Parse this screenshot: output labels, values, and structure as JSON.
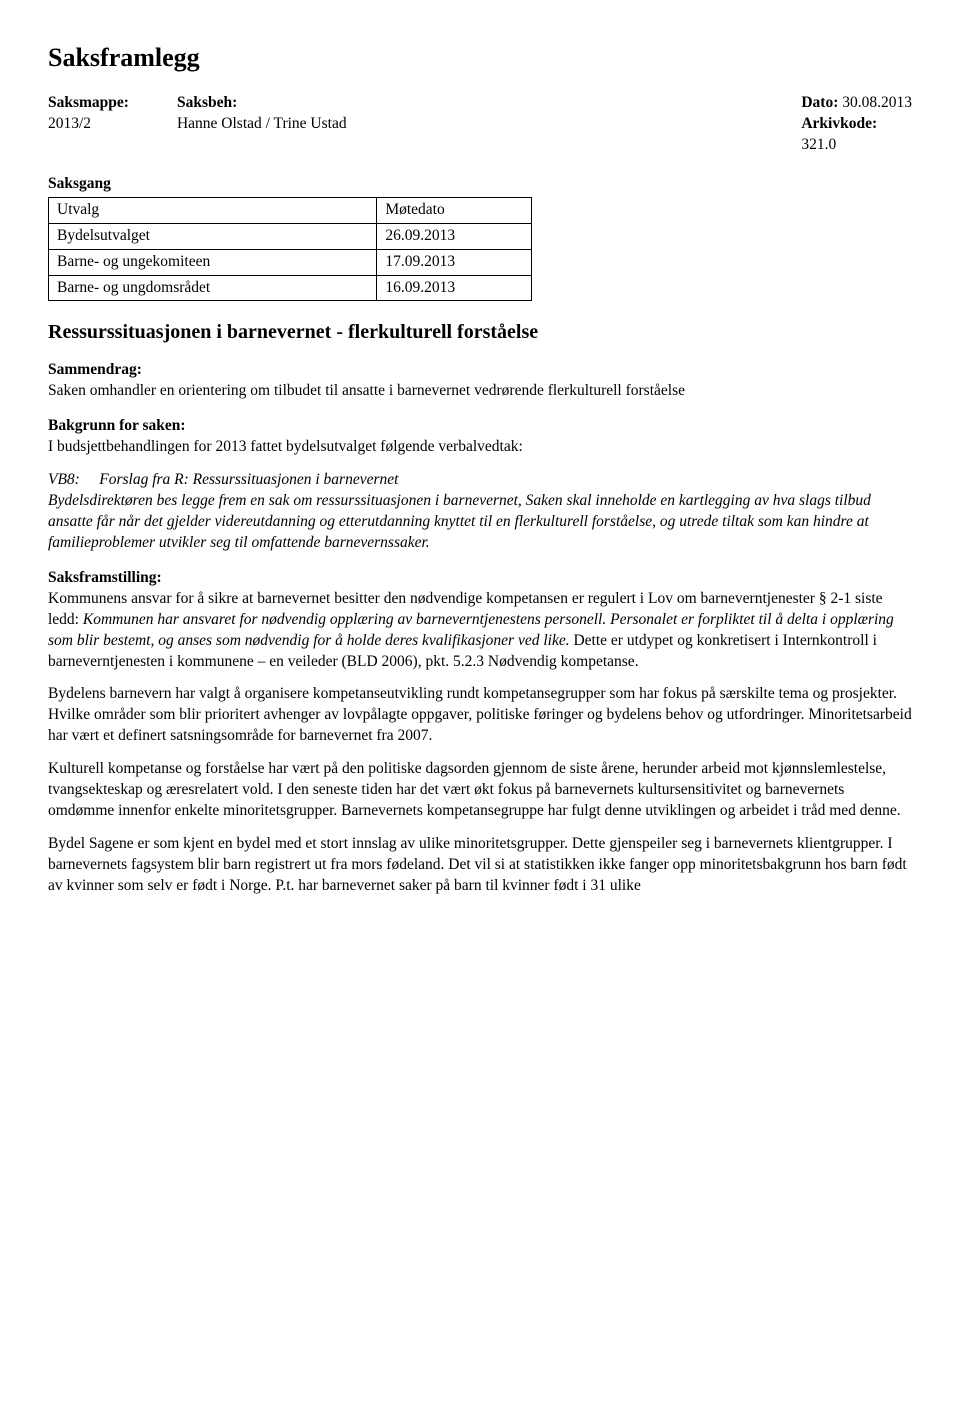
{
  "title": "Saksframlegg",
  "meta": {
    "saksmappe_label": "Saksmappe:",
    "saksmappe_value": "2013/2",
    "saksbeh_label": "Saksbeh:",
    "saksbeh_value": "Hanne Olstad / Trine Ustad",
    "dato_label": "Dato:",
    "dato_value": "30.08.2013",
    "arkiv_label": "Arkivkode:",
    "arkiv_value": "321.0"
  },
  "saksgang": {
    "label": "Saksgang",
    "columns": [
      "Utvalg",
      "Møtedato"
    ],
    "rows": [
      [
        "Bydelsutvalget",
        "26.09.2013"
      ],
      [
        "Barne- og ungekomiteen",
        "17.09.2013"
      ],
      [
        "Barne- og ungdomsrådet",
        "16.09.2013"
      ]
    ],
    "col_widths": [
      "68%",
      "32%"
    ]
  },
  "heading": "Ressurssituasjonen i barnevernet - flerkulturell forståelse",
  "sammendrag": {
    "label": "Sammendrag:",
    "text": "Saken omhandler en orientering om tilbudet til ansatte i barnevernet vedrørende flerkulturell forståelse"
  },
  "bakgrunn": {
    "label": "Bakgrunn for saken:",
    "intro": "I budsjettbehandlingen for 2013 fattet bydelsutvalget følgende verbalvedtak:",
    "vb_prefix": "VB8:",
    "vb_title": "Forslag fra R: Ressurssituasjonen i barnevernet",
    "vb_body": "Bydelsdirektøren bes legge frem en sak om ressurssituasjonen i barnevernet, Saken skal inneholde en kartlegging av hva slags tilbud ansatte får når det gjelder videreutdanning og etterutdanning knyttet til en flerkulturell forståelse, og utrede tiltak som kan hindre at familieproblemer utvikler seg til omfattende barnevernssaker."
  },
  "framstilling": {
    "label": "Saksframstilling:",
    "p1a": "Kommunens ansvar for å sikre at barnevernet besitter den nødvendige kompetansen er regulert i Lov om barneverntjenester § 2-1 siste ledd: ",
    "p1b": "Kommunen har ansvaret for nødvendig opplæring av barneverntjenestens personell. Personalet er forpliktet til å delta i opplæring som blir bestemt, og anses som nødvendig for å holde deres kvalifikasjoner ved like.",
    "p1c": " Dette er utdypet og konkretisert i Internkontroll i barneverntjenesten i kommunene – en veileder (BLD 2006), pkt. 5.2.3 Nødvendig kompetanse.",
    "p2": "Bydelens barnevern har valgt å organisere kompetanseutvikling rundt kompetansegrupper som har fokus på særskilte tema og prosjekter. Hvilke områder som blir prioritert avhenger av lovpålagte oppgaver, politiske føringer og bydelens behov og utfordringer. Minoritetsarbeid har vært et definert satsningsområde for barnevernet fra 2007.",
    "p3": "Kulturell kompetanse og forståelse har vært på den politiske dagsorden gjennom de siste årene, herunder arbeid mot kjønnslemlestelse, tvangsekteskap og æresrelatert vold. I den seneste tiden har det vært økt fokus på barnevernets kultursensitivitet og barnevernets omdømme innenfor enkelte minoritetsgrupper. Barnevernets kompetansegruppe har fulgt denne utviklingen og arbeidet i tråd med denne.",
    "p4": "Bydel Sagene er som kjent en bydel med et stort innslag av ulike minoritetsgrupper. Dette gjenspeiler seg i barnevernets klientgrupper. I barnevernets fagsystem blir barn registrert ut fra mors fødeland. Det vil si at statistikken ikke fanger opp minoritetsbakgrunn hos barn født av kvinner som selv er født i Norge. P.t. har barnevernet saker på barn til kvinner født i 31 ulike"
  }
}
